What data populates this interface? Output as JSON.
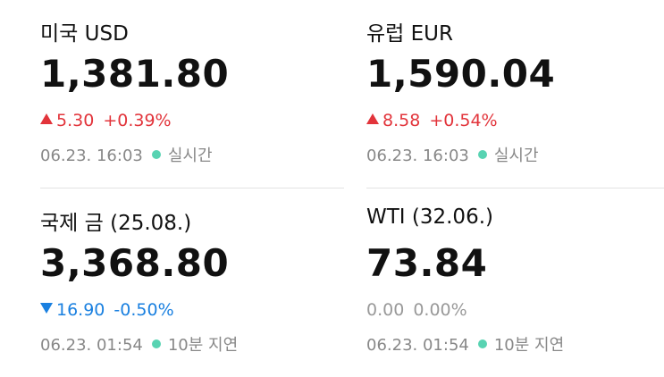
{
  "cards": [
    {
      "title": "미국 USD",
      "value": "1,381.80",
      "change": "5.30",
      "change_pct": "+0.39%",
      "time": "06.23. 16:03",
      "status": "실시간"
    },
    {
      "title": "유럽 EUR",
      "value": "1,590.04",
      "change": "8.58",
      "change_pct": "+0.54%",
      "time": "06.23. 16:03",
      "status": "실시간"
    },
    {
      "title": "국제 금 (25.08.)",
      "value": "3,368.80",
      "change": "16.90",
      "change_pct": "-0.50%",
      "time": "06.23. 01:54",
      "status": "10분 지연"
    },
    {
      "title": "WTI (32.06.)",
      "value": "73.84",
      "change": "0.00",
      "change_pct": "0.00%",
      "time": "06.23. 01:54",
      "status": "10분 지연"
    }
  ]
}
